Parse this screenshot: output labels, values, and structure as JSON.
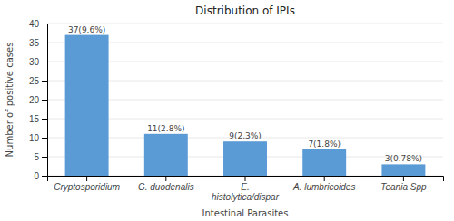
{
  "chart_data": {
    "type": "bar",
    "title": "Distribution of IPIs",
    "xlabel": "Intestinal Parasites",
    "ylabel": "Number of positive cases",
    "categories": [
      "Cryptosporidium",
      "G. duodenalis",
      "E.\nhistolytica/dispar",
      "A. lumbricoides",
      "Teania Spp"
    ],
    "values": [
      37,
      11,
      9,
      7,
      3
    ],
    "value_labels": [
      "37(9.6%)",
      "11(2.8%)",
      "9(2.3%)",
      "7(1.8%)",
      "3(0.78%)"
    ],
    "data_labels": true,
    "color": "#5b9bd5",
    "ylim": [
      0,
      40
    ],
    "yticks": [
      0,
      5,
      10,
      15,
      20,
      25,
      30,
      35,
      40
    ],
    "grid": true
  }
}
